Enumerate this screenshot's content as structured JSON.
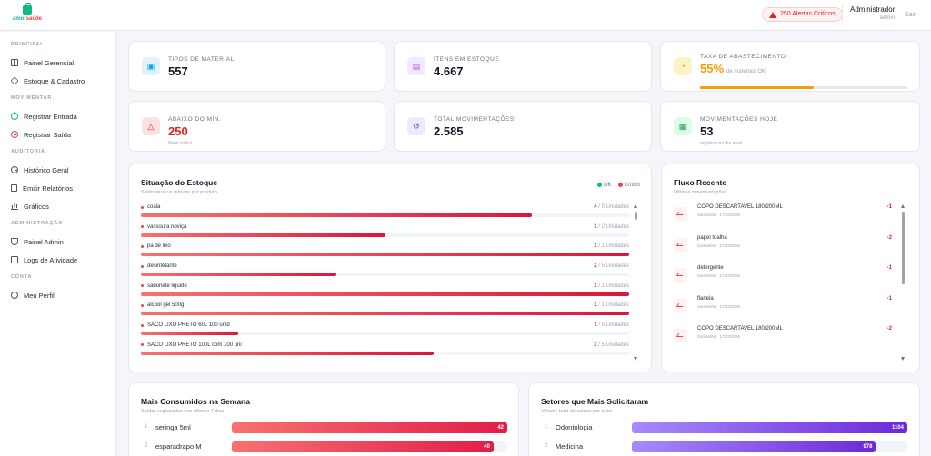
{
  "brand": {
    "name_a": "amor",
    "name_b": "saúde"
  },
  "header": {
    "alert": "250 Alertas Críticos",
    "user_name": "Administrador",
    "user_role": "admin",
    "logout": "Sair"
  },
  "sidebar": {
    "sections": [
      {
        "title": "PRINCIPAL",
        "items": [
          {
            "label": "Painel Gerencial",
            "icon": "grid-icon"
          },
          {
            "label": "Estoque & Cadastro",
            "icon": "box-icon"
          }
        ]
      },
      {
        "title": "MOVIMENTAR",
        "items": [
          {
            "label": "Registrar Entrada",
            "icon": "plus-circle-icon"
          },
          {
            "label": "Registrar Saída",
            "icon": "minus-circle-icon"
          }
        ]
      },
      {
        "title": "AUDITORIA",
        "items": [
          {
            "label": "Histórico Geral",
            "icon": "history-icon"
          },
          {
            "label": "Emitir Relatórios",
            "icon": "document-icon"
          },
          {
            "label": "Gráficos",
            "icon": "bar-chart-icon"
          }
        ]
      },
      {
        "title": "ADMINISTRAÇÃO",
        "items": [
          {
            "label": "Painel Admin",
            "icon": "shield-icon"
          },
          {
            "label": "Logs de Atividade",
            "icon": "log-icon"
          }
        ]
      },
      {
        "title": "CONTA",
        "items": [
          {
            "label": "Meu Perfil",
            "icon": "user-icon"
          }
        ]
      }
    ]
  },
  "stats": {
    "materials": {
      "label": "Tipos de Material",
      "value": "557",
      "icon_color": "#0ea5e9"
    },
    "items": {
      "label": "Itens em Estoque",
      "value": "4.667",
      "icon_color": "#a855f7"
    },
    "supply": {
      "label": "Taxa de Abastecimento",
      "value": "55%",
      "sub": "de materiais OK",
      "fraction": 0.55,
      "color": "#f59e0b"
    },
    "below_min": {
      "label": "Abaixo do Mín.",
      "value": "250",
      "sub": "Nível crítico",
      "color": "#dc2626"
    },
    "movements": {
      "label": "Total Movimentações",
      "value": "2.585"
    },
    "today": {
      "label": "Movimentações Hoje",
      "value": "53",
      "sub": "registros no dia atual"
    }
  },
  "stock": {
    "title": "Situação do Estoque",
    "subtitle": "Saldo atual vs mínimo por produto",
    "legend_ok": "OK",
    "legend_critical": "Crítico",
    "rows": [
      {
        "name": "coala",
        "qty": "4",
        "min": "/ 5 Unidades",
        "fraction": 0.8
      },
      {
        "name": "vassoura noviça",
        "qty": "1",
        "min": "/ 2 Unidades",
        "fraction": 0.5
      },
      {
        "name": "pa de lixo",
        "qty": "1",
        "min": "/ 1 Unidades",
        "fraction": 1.0
      },
      {
        "name": "desinfetante",
        "qty": "2",
        "min": "/ 5 Unidades",
        "fraction": 0.4
      },
      {
        "name": "sabonete liquido",
        "qty": "1",
        "min": "/ 1 Unidades",
        "fraction": 1.0
      },
      {
        "name": "alcool gel 500g",
        "qty": "1",
        "min": "/ 1 Unidades",
        "fraction": 1.0
      },
      {
        "name": "SACO LIXO PRETO 60L 100 unid",
        "qty": "1",
        "min": "/ 5 Unidades",
        "fraction": 0.2
      },
      {
        "name": "SACO LIXO PRETO 100L com 100 uni",
        "qty": "3",
        "min": "/ 5 Unidades",
        "fraction": 0.6
      }
    ]
  },
  "flow": {
    "title": "Fluxo Recente",
    "subtitle": "Últimas movimentações",
    "rows": [
      {
        "name": "COPO DESCARTAVEL 180/200ML",
        "meta": "Samantha · 17/03/2026",
        "delta": "-1"
      },
      {
        "name": "papel toalha",
        "meta": "Samantha · 17/03/2026",
        "delta": "-2"
      },
      {
        "name": "detergente",
        "meta": "Samantha · 17/03/2026",
        "delta": "-1"
      },
      {
        "name": "flanela",
        "meta": "Samantha · 17/03/2026",
        "delta": "-1"
      },
      {
        "name": "COPO DESCARTAVEL 180/200ML",
        "meta": "Samantha · 17/03/2026",
        "delta": "-2"
      }
    ]
  },
  "consumed": {
    "title": "Mais Consumidos na Semana",
    "subtitle": "Saídas registradas nos últimos 7 dias",
    "rows": [
      {
        "rank": "1",
        "name": "seringa 5ml",
        "value": "42",
        "fraction": 1.0
      },
      {
        "rank": "2",
        "name": "esparadrapo M",
        "value": "40",
        "fraction": 0.95
      }
    ]
  },
  "sectors": {
    "title": "Setores que Mais Solicitaram",
    "subtitle": "Volume total de saídas por setor",
    "rows": [
      {
        "rank": "1",
        "name": "Odontologia",
        "value": "1104",
        "fraction": 1.0
      },
      {
        "rank": "2",
        "name": "Medicina",
        "value": "978",
        "fraction": 0.886
      }
    ]
  }
}
